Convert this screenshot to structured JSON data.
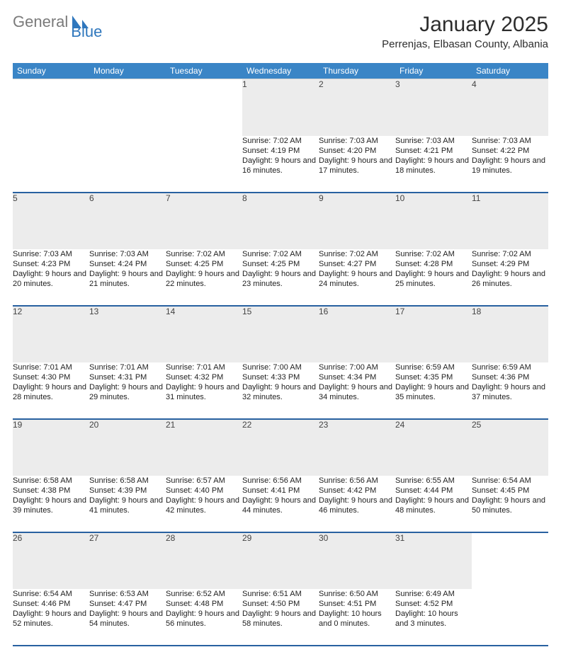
{
  "logo": {
    "text_general": "General",
    "text_blue": "Blue",
    "brand_color": "#2f77bd",
    "gray": "#7a7a7a"
  },
  "title": "January 2025",
  "location": "Perrenjas, Elbasan County, Albania",
  "header_bg": "#3a85c6",
  "day_header_bg": "#ececec",
  "rule_color": "#2861a0",
  "weekdays": [
    "Sunday",
    "Monday",
    "Tuesday",
    "Wednesday",
    "Thursday",
    "Friday",
    "Saturday"
  ],
  "weeks": [
    [
      null,
      null,
      null,
      {
        "d": "1",
        "sr": "7:02 AM",
        "ss": "4:19 PM",
        "dl": "9 hours and 16 minutes."
      },
      {
        "d": "2",
        "sr": "7:03 AM",
        "ss": "4:20 PM",
        "dl": "9 hours and 17 minutes."
      },
      {
        "d": "3",
        "sr": "7:03 AM",
        "ss": "4:21 PM",
        "dl": "9 hours and 18 minutes."
      },
      {
        "d": "4",
        "sr": "7:03 AM",
        "ss": "4:22 PM",
        "dl": "9 hours and 19 minutes."
      }
    ],
    [
      {
        "d": "5",
        "sr": "7:03 AM",
        "ss": "4:23 PM",
        "dl": "9 hours and 20 minutes."
      },
      {
        "d": "6",
        "sr": "7:03 AM",
        "ss": "4:24 PM",
        "dl": "9 hours and 21 minutes."
      },
      {
        "d": "7",
        "sr": "7:02 AM",
        "ss": "4:25 PM",
        "dl": "9 hours and 22 minutes."
      },
      {
        "d": "8",
        "sr": "7:02 AM",
        "ss": "4:25 PM",
        "dl": "9 hours and 23 minutes."
      },
      {
        "d": "9",
        "sr": "7:02 AM",
        "ss": "4:27 PM",
        "dl": "9 hours and 24 minutes."
      },
      {
        "d": "10",
        "sr": "7:02 AM",
        "ss": "4:28 PM",
        "dl": "9 hours and 25 minutes."
      },
      {
        "d": "11",
        "sr": "7:02 AM",
        "ss": "4:29 PM",
        "dl": "9 hours and 26 minutes."
      }
    ],
    [
      {
        "d": "12",
        "sr": "7:01 AM",
        "ss": "4:30 PM",
        "dl": "9 hours and 28 minutes."
      },
      {
        "d": "13",
        "sr": "7:01 AM",
        "ss": "4:31 PM",
        "dl": "9 hours and 29 minutes."
      },
      {
        "d": "14",
        "sr": "7:01 AM",
        "ss": "4:32 PM",
        "dl": "9 hours and 31 minutes."
      },
      {
        "d": "15",
        "sr": "7:00 AM",
        "ss": "4:33 PM",
        "dl": "9 hours and 32 minutes."
      },
      {
        "d": "16",
        "sr": "7:00 AM",
        "ss": "4:34 PM",
        "dl": "9 hours and 34 minutes."
      },
      {
        "d": "17",
        "sr": "6:59 AM",
        "ss": "4:35 PM",
        "dl": "9 hours and 35 minutes."
      },
      {
        "d": "18",
        "sr": "6:59 AM",
        "ss": "4:36 PM",
        "dl": "9 hours and 37 minutes."
      }
    ],
    [
      {
        "d": "19",
        "sr": "6:58 AM",
        "ss": "4:38 PM",
        "dl": "9 hours and 39 minutes."
      },
      {
        "d": "20",
        "sr": "6:58 AM",
        "ss": "4:39 PM",
        "dl": "9 hours and 41 minutes."
      },
      {
        "d": "21",
        "sr": "6:57 AM",
        "ss": "4:40 PM",
        "dl": "9 hours and 42 minutes."
      },
      {
        "d": "22",
        "sr": "6:56 AM",
        "ss": "4:41 PM",
        "dl": "9 hours and 44 minutes."
      },
      {
        "d": "23",
        "sr": "6:56 AM",
        "ss": "4:42 PM",
        "dl": "9 hours and 46 minutes."
      },
      {
        "d": "24",
        "sr": "6:55 AM",
        "ss": "4:44 PM",
        "dl": "9 hours and 48 minutes."
      },
      {
        "d": "25",
        "sr": "6:54 AM",
        "ss": "4:45 PM",
        "dl": "9 hours and 50 minutes."
      }
    ],
    [
      {
        "d": "26",
        "sr": "6:54 AM",
        "ss": "4:46 PM",
        "dl": "9 hours and 52 minutes."
      },
      {
        "d": "27",
        "sr": "6:53 AM",
        "ss": "4:47 PM",
        "dl": "9 hours and 54 minutes."
      },
      {
        "d": "28",
        "sr": "6:52 AM",
        "ss": "4:48 PM",
        "dl": "9 hours and 56 minutes."
      },
      {
        "d": "29",
        "sr": "6:51 AM",
        "ss": "4:50 PM",
        "dl": "9 hours and 58 minutes."
      },
      {
        "d": "30",
        "sr": "6:50 AM",
        "ss": "4:51 PM",
        "dl": "10 hours and 0 minutes."
      },
      {
        "d": "31",
        "sr": "6:49 AM",
        "ss": "4:52 PM",
        "dl": "10 hours and 3 minutes."
      },
      null
    ]
  ],
  "labels": {
    "sunrise": "Sunrise:",
    "sunset": "Sunset:",
    "daylight": "Daylight:"
  }
}
